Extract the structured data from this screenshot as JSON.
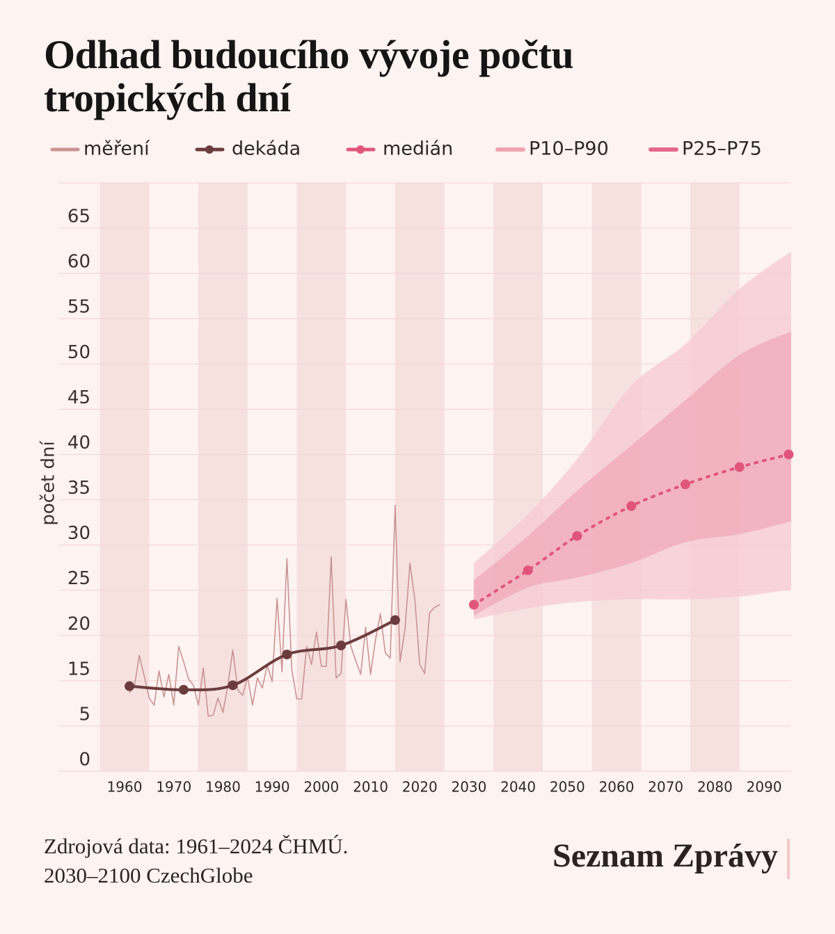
{
  "chart_data": {
    "type": "line",
    "title": "Odhad budoucího vývoje počtu tropických dní",
    "ylabel": "počet dní",
    "source": [
      "Zdrojová data: 1961–2024 ČHMÚ.",
      "2030–2100 CzechGlobe"
    ],
    "brand": "Seznam Zprávy",
    "xlim": [
      1946.7,
      2095.5
    ],
    "xticks": [
      1960,
      1970,
      1980,
      1990,
      2000,
      2010,
      2020,
      2030,
      2040,
      2050,
      2060,
      2070,
      2080,
      2090
    ],
    "ylim": [
      5,
      70
    ],
    "yticks": [
      {
        "value": 5,
        "label": "0"
      },
      {
        "value": 10,
        "label": "5"
      },
      15,
      20,
      25,
      30,
      35,
      40,
      45,
      50,
      55,
      60,
      65
    ],
    "grid": true,
    "series": [
      {
        "name": "měření",
        "color": "#c99494",
        "x": [
          1961,
          1962,
          1963,
          1964,
          1965,
          1966,
          1967,
          1968,
          1969,
          1970,
          1971,
          1972,
          1973,
          1974,
          1975,
          1976,
          1977,
          1978,
          1979,
          1980,
          1981,
          1982,
          1983,
          1984,
          1985,
          1986,
          1987,
          1988,
          1989,
          1990,
          1991,
          1992,
          1993,
          1994,
          1995,
          1996,
          1997,
          1998,
          1999,
          2000,
          2001,
          2002,
          2003,
          2004,
          2005,
          2006,
          2007,
          2008,
          2009,
          2010,
          2011,
          2012,
          2013,
          2014,
          2015,
          2016,
          2017,
          2018,
          2019,
          2020,
          2021,
          2022,
          2023,
          2024
        ],
        "values": [
          13.7,
          14.4,
          17.8,
          15.5,
          13.1,
          12.3,
          16.1,
          13.2,
          15.7,
          12.3,
          18.8,
          17.1,
          15.2,
          14.5,
          12.3,
          16.4,
          11.1,
          11.2,
          13.1,
          11.5,
          14.5,
          18.4,
          14.0,
          13.4,
          15.4,
          12.3,
          15.3,
          14.2,
          16.7,
          14.9,
          24.1,
          16.0,
          28.5,
          16.2,
          13.0,
          13.0,
          18.8,
          16.8,
          20.4,
          16.6,
          16.6,
          28.7,
          15.3,
          15.8,
          24.0,
          18.8,
          17.2,
          15.7,
          20.9,
          15.7,
          19.5,
          22.4,
          18.1,
          17.5,
          34.4,
          17.1,
          20.7,
          28.0,
          24.0,
          16.8,
          15.8,
          22.5,
          23.1,
          23.4
        ]
      },
      {
        "name": "dekáda",
        "color": "#6b3c3e",
        "markers": true,
        "smooth": true,
        "x": [
          1961,
          1972,
          1982,
          1993,
          2004,
          2015
        ],
        "values": [
          14.4,
          14.0,
          14.5,
          17.9,
          18.9,
          21.7
        ]
      },
      {
        "name": "medián",
        "color": "#e0567a",
        "markers": true,
        "dotted": true,
        "smooth": true,
        "x": [
          2031,
          2042,
          2052,
          2063,
          2074,
          2085,
          2095
        ],
        "values": [
          23.4,
          27.2,
          31.0,
          34.3,
          36.7,
          38.6,
          40.0
        ]
      },
      {
        "name": "P10–P90",
        "color": "#f0a4b2",
        "fill": "#f6c9d1",
        "band": true,
        "x": [
          2031,
          2042,
          2052,
          2063,
          2074,
          2085,
          2095.5
        ],
        "lower": [
          21.8,
          23.0,
          23.7,
          24.0,
          24.0,
          24.3,
          25.1
        ],
        "upper": [
          28.0,
          33.4,
          39.5,
          47.6,
          52.2,
          58.3,
          62.4
        ]
      },
      {
        "name": "P25–P75",
        "color": "#e3688a",
        "fill": "#f0a9b7",
        "band": true,
        "x": [
          2031,
          2042,
          2052,
          2063,
          2074,
          2085,
          2095.5
        ],
        "lower": [
          22.2,
          25.3,
          26.4,
          28.0,
          30.3,
          31.2,
          32.6
        ],
        "upper": [
          26.1,
          31.0,
          36.0,
          41.0,
          46.0,
          51.0,
          53.6
        ]
      }
    ]
  }
}
